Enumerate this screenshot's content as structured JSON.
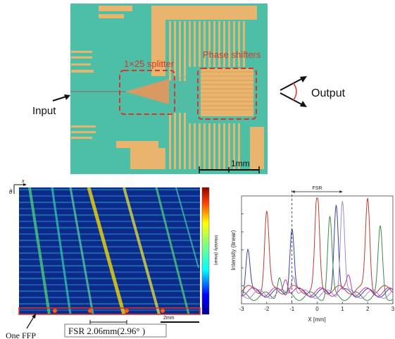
{
  "top_panel": {
    "input_label": "Input",
    "output_label": "Output",
    "splitter_label": "1×25 splitter",
    "phase_label": "Phase shifters",
    "scale_label": "1mm",
    "colors": {
      "chip": "#4dbfa6",
      "metal": "#e9b46d",
      "annotation": "#d8362a"
    }
  },
  "heatmap_panel": {
    "colorbar_label": "Intensity (linear)",
    "scale_label": "2mm",
    "axis_x_label": "x",
    "axis_y_label": "θ",
    "ffp_label": "One FFP",
    "fsr_caption": "FSR 2.06mm(2.96°  )"
  },
  "chart_data": {
    "type": "line",
    "xlabel": "X [mm]",
    "ylabel": "Intensity (linear)",
    "xlim": [
      -3,
      3
    ],
    "xticks": [
      "-3",
      "-2",
      "-1",
      "0",
      "1",
      "2",
      "3"
    ],
    "fsr_label": "FSR",
    "fsr_range": [
      -1,
      1
    ],
    "series": [
      {
        "color": "#3b3fb0",
        "peaks": [
          [
            -2.75,
            0.42
          ],
          [
            -1.0,
            0.62
          ],
          [
            0.75,
            0.85
          ]
        ]
      },
      {
        "color": "#c23a32",
        "peaks": [
          [
            -2.0,
            0.72
          ],
          [
            0.0,
            0.9
          ],
          [
            2.0,
            0.85
          ]
        ]
      },
      {
        "color": "#3d8a48",
        "peaks": [
          [
            -1.5,
            0.2
          ],
          [
            0.5,
            0.72
          ],
          [
            2.5,
            0.62
          ]
        ]
      },
      {
        "color": "#a08cc8",
        "peaks": [
          [
            -0.95,
            0.2
          ],
          [
            1.0,
            0.88
          ]
        ]
      },
      {
        "color": "#c23a9c",
        "peaks": [
          [
            -1.25,
            0.15
          ],
          [
            1.25,
            0.15
          ]
        ]
      }
    ]
  }
}
